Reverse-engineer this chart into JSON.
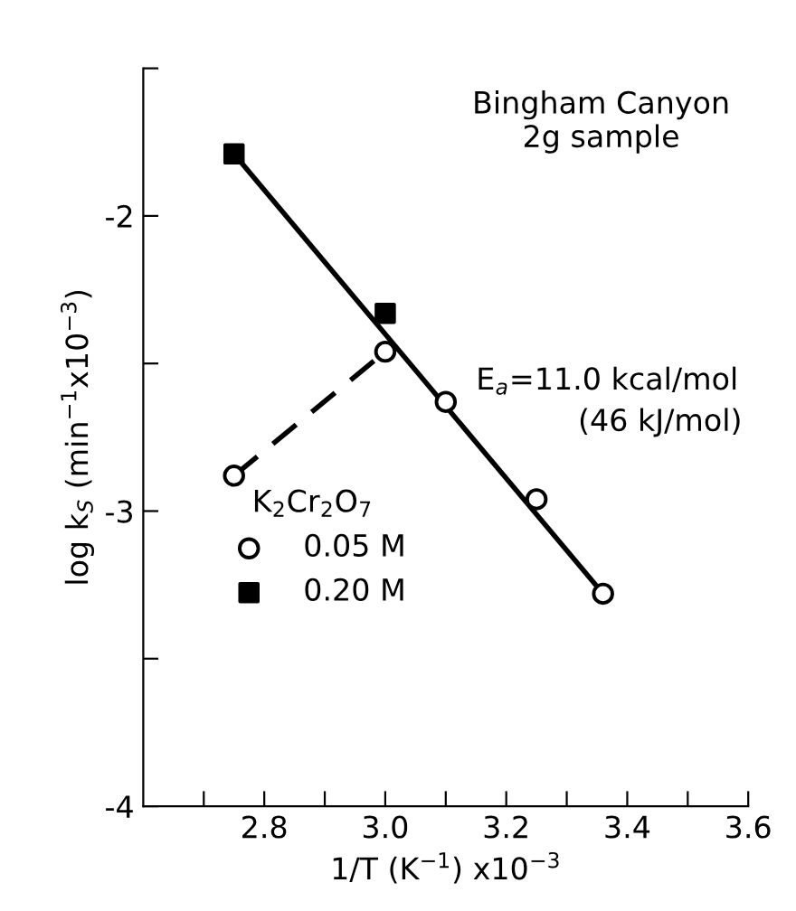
{
  "chart_data": {
    "type": "scatter",
    "xlabel": "1/T (K$^{−1}$) x10$^{−3}$",
    "ylabel": "log k$_{S}$ (min$^{−1}$x10$^{−3}$)",
    "legend_title": "K$_{2}$Cr$_{2}$O$_{7}$",
    "legend": "center left",
    "annotations": [
      "Bingham Canyon\n2g sample",
      {
        "text": "E$_{a}$=11.0 kcal/mol",
        "x": 3.1,
        "y": -2.63
      },
      "(46 kJ/mol)"
    ],
    "xlim": [
      2.6,
      3.6
    ],
    "xticks": [
      {
        "value": 2.7,
        "label": null
      },
      2.8,
      {
        "value": 2.9,
        "label": null
      },
      {
        "value": 3.0,
        "label": "3.0"
      },
      {
        "value": 3.1,
        "label": null
      },
      3.2,
      {
        "value": 3.3,
        "label": null
      },
      3.4,
      {
        "value": 3.5,
        "label": null
      },
      3.6
    ],
    "ylim": [
      -4,
      -1.5
    ],
    "yticks": [
      -4,
      {
        "value": -3.5,
        "label": null
      },
      -3,
      {
        "value": -2.5,
        "label": null
      },
      -2,
      {
        "value": -1.5,
        "label": null
      }
    ],
    "grid": false,
    "series": [
      {
        "type": "line",
        "x": [
          2.75,
          3.36
        ],
        "values": [
          -1.79,
          -3.28
        ],
        "color": "#000000",
        "marker": "none",
        "line_style": "solid"
      },
      {
        "type": "line",
        "x": [
          2.75,
          3.0
        ],
        "values": [
          -2.88,
          -2.46
        ],
        "color": "#000000",
        "marker": "none",
        "line_style": "dashed"
      },
      {
        "name": "0.05 M",
        "x": [
          2.75,
          3.0,
          3.1,
          3.25,
          3.36
        ],
        "values": [
          -2.88,
          -2.46,
          -2.63,
          -2.96,
          -3.28
        ],
        "color": "#000000",
        "marker": "circle"
      },
      {
        "name": "0.20 M",
        "x": [
          2.75,
          3.0
        ],
        "values": [
          -1.79,
          -2.33
        ],
        "color": "#000000",
        "marker": "square"
      }
    ]
  }
}
